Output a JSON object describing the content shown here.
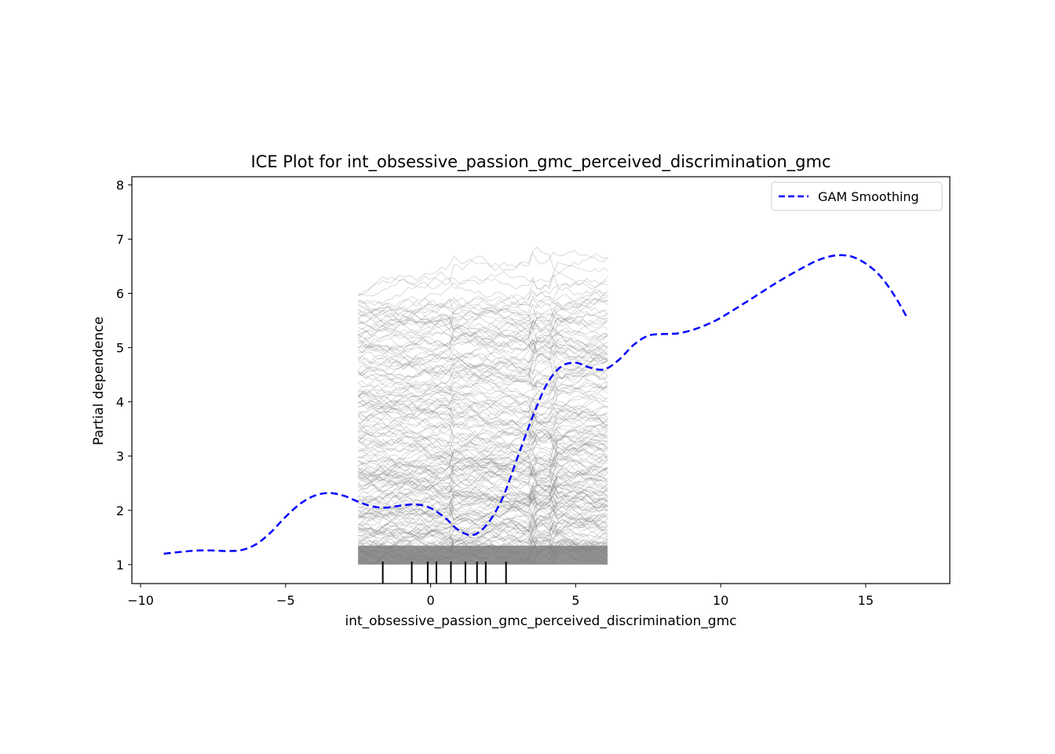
{
  "chart_data": {
    "type": "line",
    "title": "ICE Plot for int_obsessive_passion_gmc_perceived_discrimination_gmc",
    "xlabel": "int_obsessive_passion_gmc_perceived_discrimination_gmc",
    "ylabel": "Partial dependence",
    "xlim": [
      -10.3,
      17.9
    ],
    "ylim": [
      0.65,
      8.15
    ],
    "x_ticks": [
      -10,
      -5,
      0,
      5,
      10,
      15
    ],
    "x_tick_labels": [
      "−10",
      "−5",
      "0",
      "5",
      "10",
      "15"
    ],
    "y_ticks": [
      1,
      2,
      3,
      4,
      5,
      6,
      7,
      8
    ],
    "y_tick_labels": [
      "1",
      "2",
      "3",
      "4",
      "5",
      "6",
      "7",
      "8"
    ],
    "grid": false,
    "legend": {
      "position": "top-right",
      "entries": [
        "GAM Smoothing"
      ]
    },
    "series": [
      {
        "name": "GAM Smoothing",
        "style": "dashed",
        "color": "#0000ff",
        "x": [
          -9.2,
          -8.5,
          -8.0,
          -7.5,
          -7.0,
          -6.5,
          -6.0,
          -5.5,
          -5.0,
          -4.5,
          -4.0,
          -3.5,
          -3.0,
          -2.5,
          -2.0,
          -1.5,
          -1.0,
          -0.5,
          0.0,
          0.5,
          1.0,
          1.5,
          2.0,
          2.5,
          3.0,
          3.5,
          4.0,
          4.5,
          5.0,
          5.5,
          6.0,
          6.5,
          7.0,
          7.5,
          8.0,
          8.5,
          9.0,
          9.5,
          10.0,
          11.0,
          12.0,
          13.0,
          13.5,
          14.0,
          14.5,
          15.0,
          15.5,
          16.0,
          16.4
        ],
        "y": [
          1.2,
          1.24,
          1.26,
          1.26,
          1.25,
          1.27,
          1.38,
          1.6,
          1.88,
          2.12,
          2.27,
          2.32,
          2.27,
          2.16,
          2.07,
          2.05,
          2.09,
          2.11,
          2.04,
          1.86,
          1.62,
          1.55,
          1.78,
          2.25,
          2.98,
          3.7,
          4.32,
          4.65,
          4.72,
          4.63,
          4.6,
          4.78,
          5.05,
          5.22,
          5.25,
          5.26,
          5.32,
          5.42,
          5.55,
          5.88,
          6.22,
          6.52,
          6.64,
          6.7,
          6.68,
          6.55,
          6.32,
          5.95,
          5.58
        ]
      }
    ],
    "ice_band": {
      "x_range": [
        -2.5,
        6.1
      ],
      "y_range": [
        1.0,
        6.85
      ],
      "color": "#7f7f7f"
    },
    "rug": [
      -1.65,
      -0.65,
      -0.1,
      0.2,
      0.7,
      1.2,
      1.6,
      1.9,
      2.6
    ]
  }
}
